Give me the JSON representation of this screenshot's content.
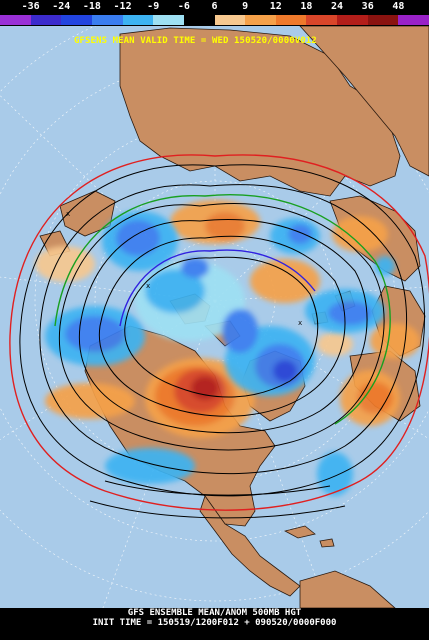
{
  "colorbar": {
    "labels": [
      "-36",
      "-24",
      "-18",
      "-12",
      "-9",
      "-6",
      "6",
      "9",
      "12",
      "18",
      "24",
      "36",
      "48"
    ],
    "colors": [
      "#9a30d6",
      "#3c2bcd",
      "#2244e0",
      "#3a7df0",
      "#3db3f2",
      "#9ee0f3",
      "#000000",
      "#f7c88f",
      "#f5a14a",
      "#ef7a2c",
      "#d9462a",
      "#b31e1a",
      "#8a1310",
      "#9a22c8"
    ]
  },
  "header": {
    "text": "GFSENS MEAN VALID TIME = WED 150520/0000V012"
  },
  "footer": {
    "line1": "GFS ENSEMBLE MEAN/ANOM 500MB HGT",
    "line2": "INIT TIME = 150519/1200F012 + 090520/0000F000"
  },
  "map": {
    "ocean_color": "#a9cbe9",
    "land_color": "#c98e62",
    "border_color": "#2a1a10"
  }
}
